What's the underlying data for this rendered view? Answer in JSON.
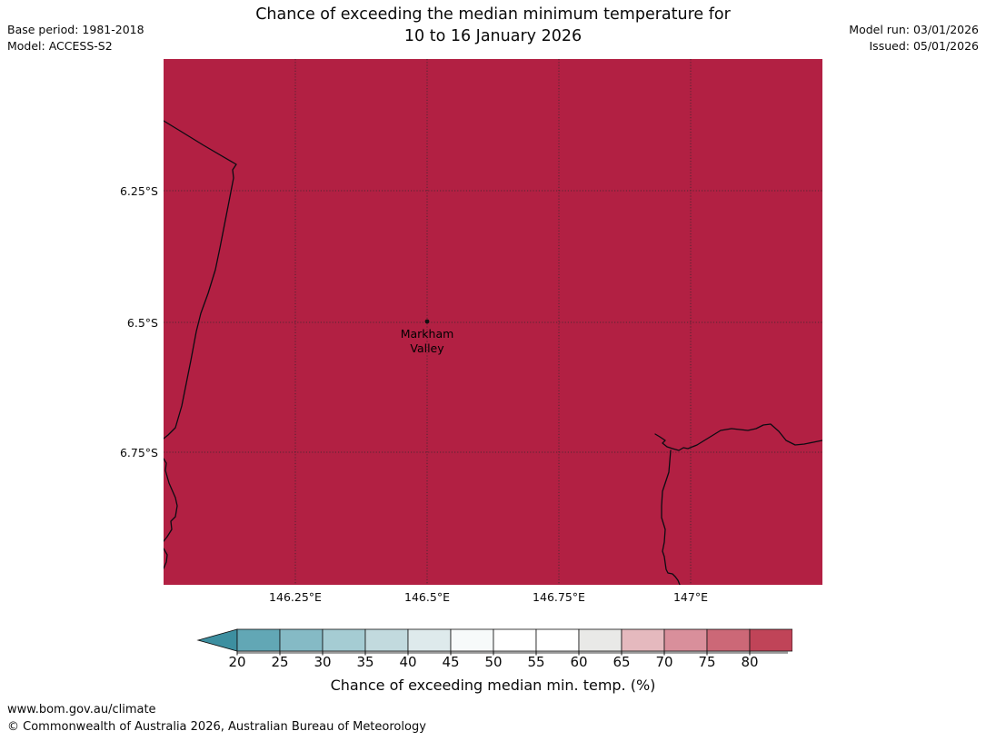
{
  "header": {
    "title_line1": "Chance of exceeding the median minimum temperature for",
    "title_line2": "10 to 16 January 2026",
    "base_period": "Base period: 1981-2018",
    "model": "Model: ACCESS-S2",
    "model_run": "Model run: 03/01/2026",
    "issued": "Issued: 05/01/2026"
  },
  "map": {
    "marker": {
      "line1": "Markham",
      "line2": "Valley"
    },
    "lat_labels": [
      "6.25°S",
      "6.5°S",
      "6.75°S"
    ],
    "lon_labels": [
      "146.25°E",
      "146.5°E",
      "146.75°E",
      "147°E"
    ]
  },
  "colors": {
    "map_fill": "#B22043",
    "coastline": "#0b0b12",
    "grid": "#2a2a2a"
  },
  "colorbar": {
    "ticks": [
      "20",
      "25",
      "30",
      "35",
      "40",
      "45",
      "50",
      "55",
      "60",
      "65",
      "70",
      "75",
      "80"
    ],
    "label": "Chance of exceeding median min. temp. (%)",
    "under_color": "#3D8FA0",
    "over_color": "#B22043",
    "segment_colors": [
      "#62A7B5",
      "#85BAC5",
      "#A5CCD3",
      "#C2DADE",
      "#DEEAEC",
      "#F7FAFA",
      "#FFFFFF",
      "#FFFFFF",
      "#E9E9E7",
      "#E5B9BE",
      "#D98F9B",
      "#CC6877",
      "#C04458"
    ]
  },
  "footer": {
    "url": "www.bom.gov.au/climate",
    "copyright": "© Commonwealth of Australia 2026, Australian Bureau of Meteorology"
  }
}
